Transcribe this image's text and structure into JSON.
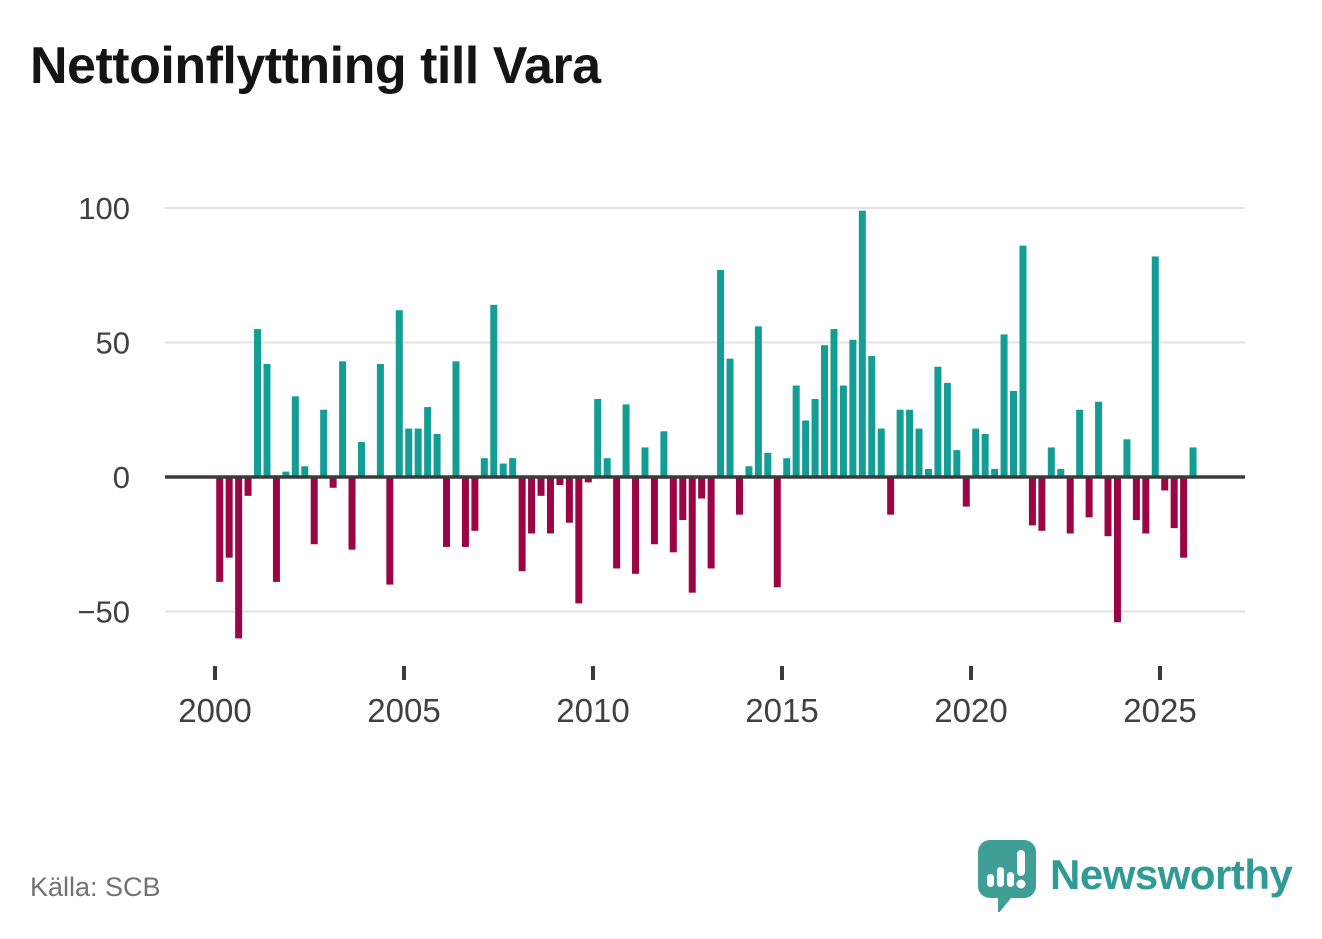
{
  "title": "Nettoinflyttning till Vara",
  "source": "Källa: SCB",
  "brand": {
    "name": "Newsworthy",
    "logo_icon": "speech-bubble-bar-chart-exclamation"
  },
  "colors": {
    "positive": "#139d95",
    "negative": "#9c0544",
    "axis": "#3b3b3b",
    "grid": "#e2e2e2",
    "tick_label": "#404040",
    "muted_text": "#737373",
    "brand_teal": "#2f9b94",
    "logo_bubble": "#3f9e95"
  },
  "chart_data": {
    "type": "bar",
    "title": "Nettoinflyttning till Vara",
    "xlabel": "",
    "ylabel": "",
    "grid": "horizontal",
    "legend": "none",
    "ylim": [
      -65,
      105
    ],
    "yticks": {
      "values": [
        100,
        50,
        0,
        -50
      ],
      "labels": [
        "100",
        "50",
        "0",
        "−50"
      ]
    },
    "xticks": {
      "values": [
        2000,
        2005,
        2010,
        2015,
        2020,
        2025
      ],
      "labels": [
        "2000",
        "2005",
        "2010",
        "2015",
        "2020",
        "2025"
      ]
    },
    "x": [
      "2000Q1",
      "2000Q2",
      "2000Q3",
      "2000Q4",
      "2001Q1",
      "2001Q2",
      "2001Q3",
      "2001Q4",
      "2002Q1",
      "2002Q2",
      "2002Q3",
      "2002Q4",
      "2003Q1",
      "2003Q2",
      "2003Q3",
      "2003Q4",
      "2004Q1",
      "2004Q2",
      "2004Q3",
      "2004Q4",
      "2005Q1",
      "2005Q2",
      "2005Q3",
      "2005Q4",
      "2006Q1",
      "2006Q2",
      "2006Q3",
      "2006Q4",
      "2007Q1",
      "2007Q2",
      "2007Q3",
      "2007Q4",
      "2008Q1",
      "2008Q2",
      "2008Q3",
      "2008Q4",
      "2009Q1",
      "2009Q2",
      "2009Q3",
      "2009Q4",
      "2010Q1",
      "2010Q2",
      "2010Q3",
      "2010Q4",
      "2011Q1",
      "2011Q2",
      "2011Q3",
      "2011Q4",
      "2012Q1",
      "2012Q2",
      "2012Q3",
      "2012Q4",
      "2013Q1",
      "2013Q2",
      "2013Q3",
      "2013Q4",
      "2014Q1",
      "2014Q2",
      "2014Q3",
      "2014Q4",
      "2015Q1",
      "2015Q2",
      "2015Q3",
      "2015Q4",
      "2016Q1",
      "2016Q2",
      "2016Q3",
      "2016Q4",
      "2017Q1",
      "2017Q2",
      "2017Q3",
      "2017Q4",
      "2018Q1",
      "2018Q2",
      "2018Q3",
      "2018Q4",
      "2019Q1",
      "2019Q2",
      "2019Q3",
      "2019Q4",
      "2020Q1",
      "2020Q2",
      "2020Q3",
      "2020Q4",
      "2021Q1",
      "2021Q2",
      "2021Q3",
      "2021Q4",
      "2022Q1",
      "2022Q2",
      "2022Q3",
      "2022Q4",
      "2023Q1",
      "2023Q2",
      "2023Q3",
      "2023Q4",
      "2024Q1",
      "2024Q2",
      "2024Q3",
      "2024Q4",
      "2025Q1",
      "2025Q2",
      "2025Q3",
      "2025Q4"
    ],
    "values": [
      -39,
      -30,
      -60,
      -7,
      55,
      42,
      -39,
      2,
      30,
      4,
      -25,
      25,
      -4,
      43,
      -27,
      13,
      0,
      42,
      -40,
      62,
      18,
      18,
      26,
      16,
      -26,
      43,
      -26,
      -20,
      7,
      64,
      5,
      7,
      -35,
      -21,
      -7,
      -21,
      -3,
      -17,
      -47,
      -2,
      29,
      7,
      -34,
      27,
      -36,
      11,
      -25,
      17,
      -28,
      -16,
      -43,
      -8,
      -34,
      77,
      44,
      -14,
      4,
      56,
      9,
      -41,
      7,
      34,
      21,
      29,
      49,
      55,
      34,
      51,
      99,
      45,
      18,
      -14,
      25,
      25,
      18,
      3,
      41,
      35,
      10,
      -11,
      18,
      16,
      3,
      53,
      32,
      86,
      -18,
      -20,
      11,
      3,
      -21,
      25,
      -15,
      28,
      -22,
      -54,
      14,
      -16,
      -21,
      82,
      -5,
      -19,
      -30,
      11
    ]
  }
}
